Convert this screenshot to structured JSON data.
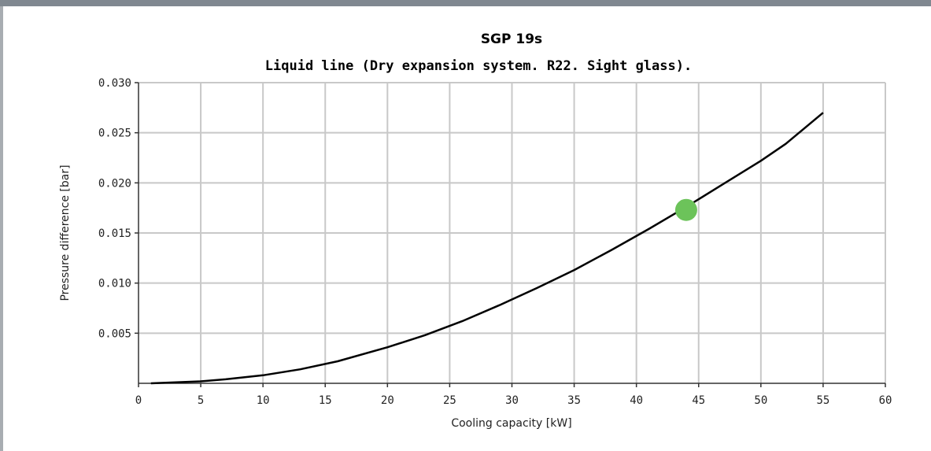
{
  "chart_data": {
    "type": "line",
    "title": "SGP 19s",
    "subtitle": "Liquid line (Dry expansion system. R22. Sight glass).",
    "xlabel": "Cooling capacity [kW]",
    "ylabel": "Pressure difference [bar]",
    "xlim": [
      0,
      60
    ],
    "ylim": [
      0,
      0.03
    ],
    "x_ticks": [
      "0",
      "5",
      "10",
      "15",
      "20",
      "25",
      "30",
      "35",
      "40",
      "45",
      "50",
      "55",
      "60"
    ],
    "y_ticks": [
      "0.005",
      "0.010",
      "0.015",
      "0.020",
      "0.025",
      "0.030"
    ],
    "grid": true,
    "series": [
      {
        "x": [
          1,
          3,
          5,
          7,
          10,
          13,
          16,
          20,
          23,
          26,
          29,
          32,
          35,
          38,
          41,
          44,
          47,
          50,
          52,
          55
        ],
        "y": [
          0.0,
          0.0001,
          0.0002,
          0.0004,
          0.0008,
          0.0014,
          0.0022,
          0.0036,
          0.0048,
          0.0062,
          0.0078,
          0.0095,
          0.0113,
          0.0133,
          0.0154,
          0.0176,
          0.0199,
          0.0222,
          0.0239,
          0.027
        ],
        "color": "#000000"
      }
    ],
    "marker": {
      "x": 44,
      "y": 0.0173,
      "color": "#6cc35a"
    }
  }
}
